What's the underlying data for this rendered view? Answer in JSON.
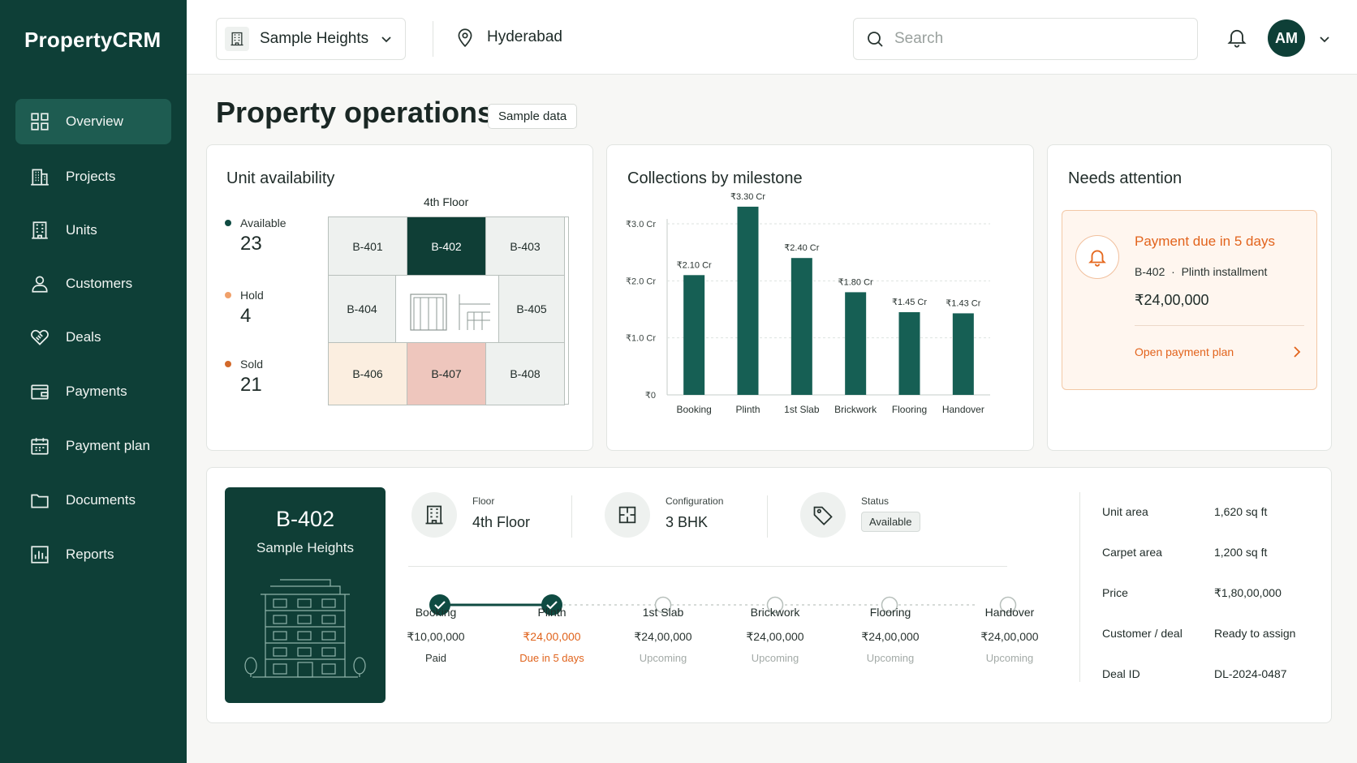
{
  "brand": "PropertyCRM",
  "nav": [
    {
      "label": "Overview",
      "icon": "grid-icon",
      "active": true
    },
    {
      "label": "Projects",
      "icon": "building-icon"
    },
    {
      "label": "Units",
      "icon": "units-icon"
    },
    {
      "label": "Customers",
      "icon": "user-icon"
    },
    {
      "label": "Deals",
      "icon": "handshake-icon"
    },
    {
      "label": "Payments",
      "icon": "wallet-icon"
    },
    {
      "label": "Payment plan",
      "icon": "calendar-icon"
    },
    {
      "label": "Documents",
      "icon": "folder-icon"
    },
    {
      "label": "Reports",
      "icon": "bar-chart-icon"
    }
  ],
  "topbar": {
    "project": "Sample Heights",
    "location": "Hyderabad",
    "search_placeholder": "Search",
    "avatar": "AM"
  },
  "page": {
    "title": "Property operations",
    "badge": "Sample data"
  },
  "availability": {
    "title": "Unit availability",
    "floor": "4th Floor",
    "legend": [
      {
        "label": "Available",
        "count": "23",
        "color": "#0f4b42"
      },
      {
        "label": "Hold",
        "count": "4",
        "color": "#f0a06a"
      },
      {
        "label": "Sold",
        "count": "21",
        "color": "#d2692a"
      }
    ],
    "units": [
      "B-401",
      "B-402",
      "B-403",
      "B-404",
      "B-405",
      "B-406",
      "B-407",
      "B-408"
    ]
  },
  "collections": {
    "title": "Collections by milestone"
  },
  "chart_data": {
    "type": "bar",
    "categories": [
      "Booking",
      "Plinth",
      "1st Slab",
      "Brickwork",
      "Flooring",
      "Handover"
    ],
    "values": [
      2.1,
      3.3,
      2.4,
      1.8,
      1.45,
      1.43
    ],
    "data_labels": [
      "₹2.10 Cr",
      "₹3.30 Cr",
      "₹2.40 Cr",
      "₹1.80 Cr",
      "₹1.45 Cr",
      "₹1.43 Cr"
    ],
    "y_ticks": [
      0,
      1.0,
      2.0,
      3.0
    ],
    "y_tick_labels": [
      "₹0",
      "₹1.0 Cr",
      "₹2.0 Cr",
      "₹3.0 Cr"
    ],
    "ylim": [
      0,
      3.0
    ],
    "grid": true,
    "bar_color": "#165f54"
  },
  "attention": {
    "title": "Needs attention",
    "alert_title": "Payment due in 5 days",
    "unit": "B-402",
    "separator": "·",
    "desc": "Plinth installment",
    "amount": "₹24,00,000",
    "link": "Open payment plan"
  },
  "detail": {
    "unit": "B-402",
    "project": "Sample Heights",
    "floor_label": "Floor",
    "floor_value": "4th Floor",
    "config_label": "Configuration",
    "config_value": "3 BHK",
    "status_label": "Status",
    "status_value": "Available",
    "milestones": [
      {
        "name": "Booking",
        "amount": "₹10,00,000",
        "status": "Paid",
        "done": true
      },
      {
        "name": "Plinth",
        "amount": "₹24,00,000",
        "status": "Due in 5 days",
        "done": true,
        "due": true
      },
      {
        "name": "1st Slab",
        "amount": "₹24,00,000",
        "status": "Upcoming",
        "done": false
      },
      {
        "name": "Brickwork",
        "amount": "₹24,00,000",
        "status": "Upcoming",
        "done": false
      },
      {
        "name": "Flooring",
        "amount": "₹24,00,000",
        "status": "Upcoming",
        "done": false
      },
      {
        "name": "Handover",
        "amount": "₹24,00,000",
        "status": "Upcoming",
        "done": false
      }
    ],
    "facts": [
      {
        "k": "Unit area",
        "v": "1,620 sq ft"
      },
      {
        "k": "Carpet area",
        "v": "1,200 sq ft"
      },
      {
        "k": "Price",
        "v": "₹1,80,00,000"
      },
      {
        "k": "Customer / deal",
        "v": "Ready to assign"
      },
      {
        "k": "Deal ID",
        "v": "DL-2024-0487"
      }
    ]
  },
  "colors": {
    "sidebar": "#0e3f37",
    "accent": "#165f54",
    "warning": "#e2631c",
    "hold_cell": "#fbeee0",
    "sold_cell": "#eec6bd",
    "selected_cell": "#0f3e36"
  }
}
